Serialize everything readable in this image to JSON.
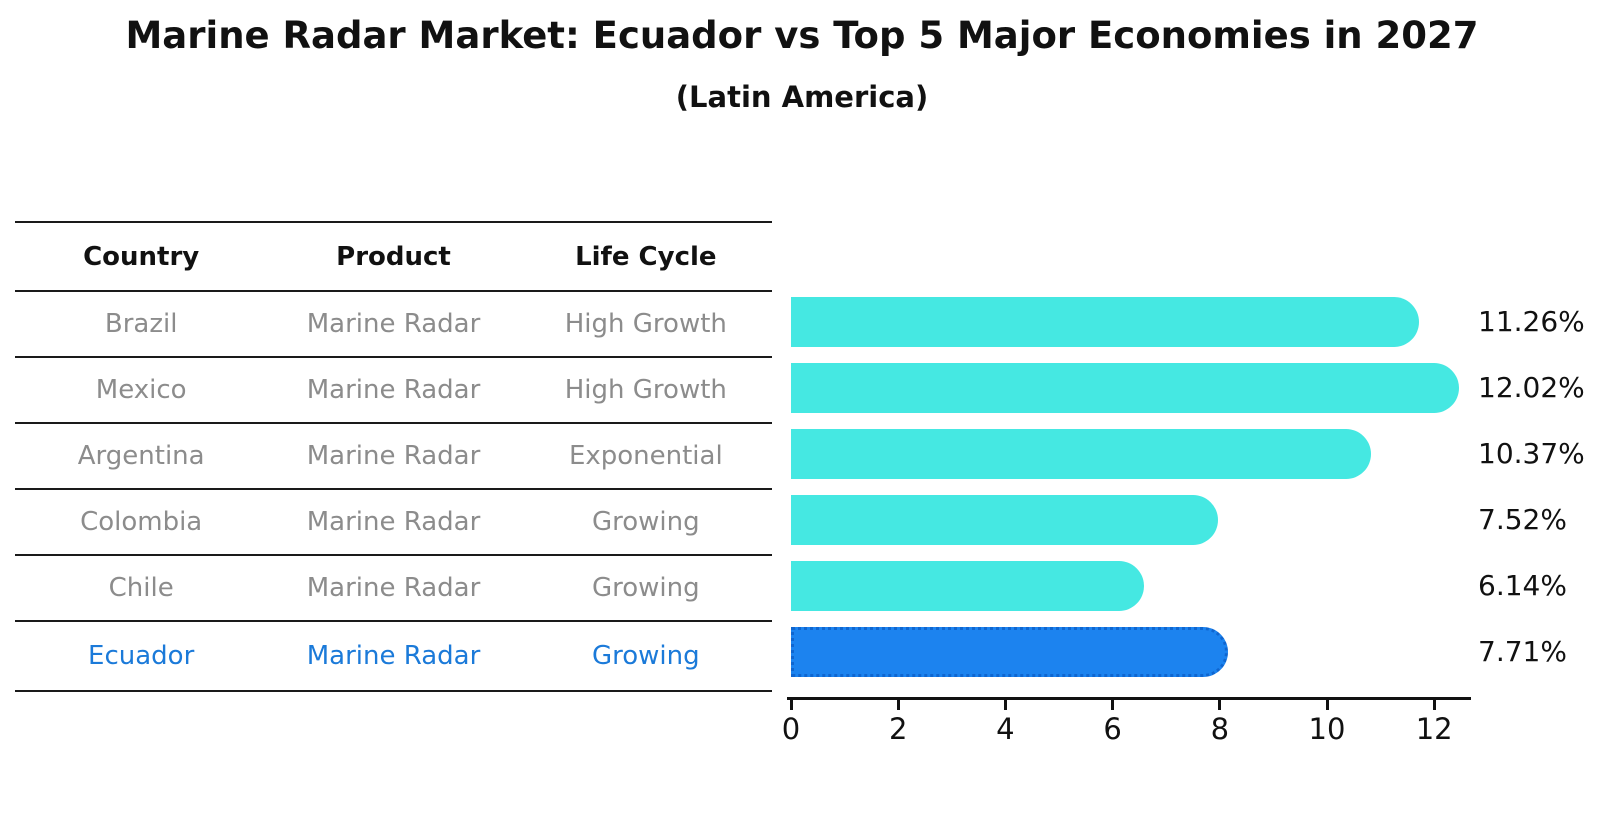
{
  "title": "Marine Radar Market: Ecuador vs Top 5 Major Economies in 2027",
  "subtitle": "(Latin America)",
  "table": {
    "headers": [
      "Country",
      "Product",
      "Life Cycle"
    ],
    "rows": [
      {
        "country": "Brazil",
        "product": "Marine Radar",
        "life_cycle": "High Growth",
        "highlight": false
      },
      {
        "country": "Mexico",
        "product": "Marine Radar",
        "life_cycle": "High Growth",
        "highlight": false
      },
      {
        "country": "Argentina",
        "product": "Marine Radar",
        "life_cycle": "Exponential",
        "highlight": false
      },
      {
        "country": "Colombia",
        "product": "Marine Radar",
        "life_cycle": "Growing",
        "highlight": false
      },
      {
        "country": "Chile",
        "product": "Marine Radar",
        "life_cycle": "Growing",
        "highlight": false
      },
      {
        "country": "Ecuador",
        "product": "Marine Radar",
        "life_cycle": "Growing",
        "highlight": true
      }
    ]
  },
  "chart_data": {
    "type": "bar",
    "orientation": "horizontal",
    "title": "Marine Radar Market: Ecuador vs Top 5 Major Economies in 2027",
    "subtitle": "(Latin America)",
    "categories": [
      "Brazil",
      "Mexico",
      "Argentina",
      "Colombia",
      "Chile",
      "Ecuador"
    ],
    "values": [
      11.26,
      12.02,
      10.37,
      7.52,
      6.14,
      7.71
    ],
    "value_labels": [
      "11.26%",
      "12.02%",
      "10.37%",
      "7.52%",
      "6.14%",
      "7.71%"
    ],
    "unit": "percent",
    "x_ticks": [
      0,
      2,
      4,
      6,
      8,
      10,
      12
    ],
    "xlim": [
      0,
      12.68
    ],
    "grid": false,
    "legend": "none",
    "highlight_index": 5
  },
  "colors": {
    "bar": "#45E8E2",
    "highlight_bar": "#1C83EF",
    "highlight_border": "#0F66D0",
    "row_text": "#8C8C8C",
    "highlight_text": "#1B7AD9",
    "heading_text": "#111111",
    "line": "#1A1A1A"
  }
}
